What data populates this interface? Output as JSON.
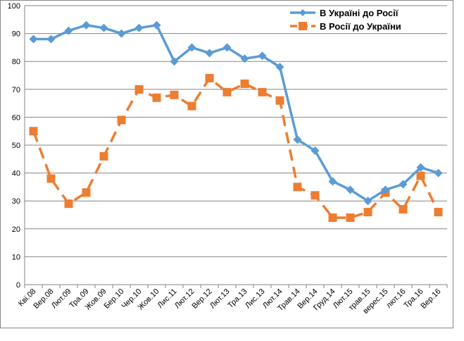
{
  "chart_data": {
    "type": "line",
    "title": "",
    "xlabel": "",
    "ylabel": "",
    "ylim": [
      0,
      100
    ],
    "yticks": [
      0,
      10,
      20,
      30,
      40,
      50,
      60,
      70,
      80,
      90,
      100
    ],
    "grid": true,
    "legend_position": "top-right",
    "categories": [
      "Кві.08",
      "Вер.08",
      "Лют.09",
      "Тра.09",
      "Жов.09",
      "Бер.10",
      "Чер.10",
      "Жов.10",
      "Лис.11",
      "Лют.12",
      "Вер.12",
      "Лют.13",
      "Тра.13",
      "Лис.13",
      "Лют.14",
      "Трав.14",
      "Вер.14",
      "Груд.14",
      "Лют.15",
      "трав.15",
      "верес.15",
      "лют.16",
      "Тра.16",
      "Вер.16"
    ],
    "series": [
      {
        "name": "В Україні до Росії",
        "color": "#5B9BD5",
        "style": "solid",
        "marker": "diamond",
        "values": [
          88,
          88,
          91,
          93,
          92,
          90,
          92,
          93,
          80,
          85,
          83,
          85,
          81,
          82,
          78,
          52,
          48,
          37,
          34,
          30,
          34,
          36,
          42,
          40
        ]
      },
      {
        "name": "В Росії до України",
        "color": "#ED7D31",
        "style": "dashed",
        "marker": "square",
        "values": [
          55,
          38,
          29,
          33,
          46,
          59,
          70,
          67,
          68,
          64,
          74,
          69,
          72,
          69,
          66,
          35,
          32,
          24,
          24,
          26,
          33,
          27,
          39,
          26
        ]
      }
    ]
  }
}
